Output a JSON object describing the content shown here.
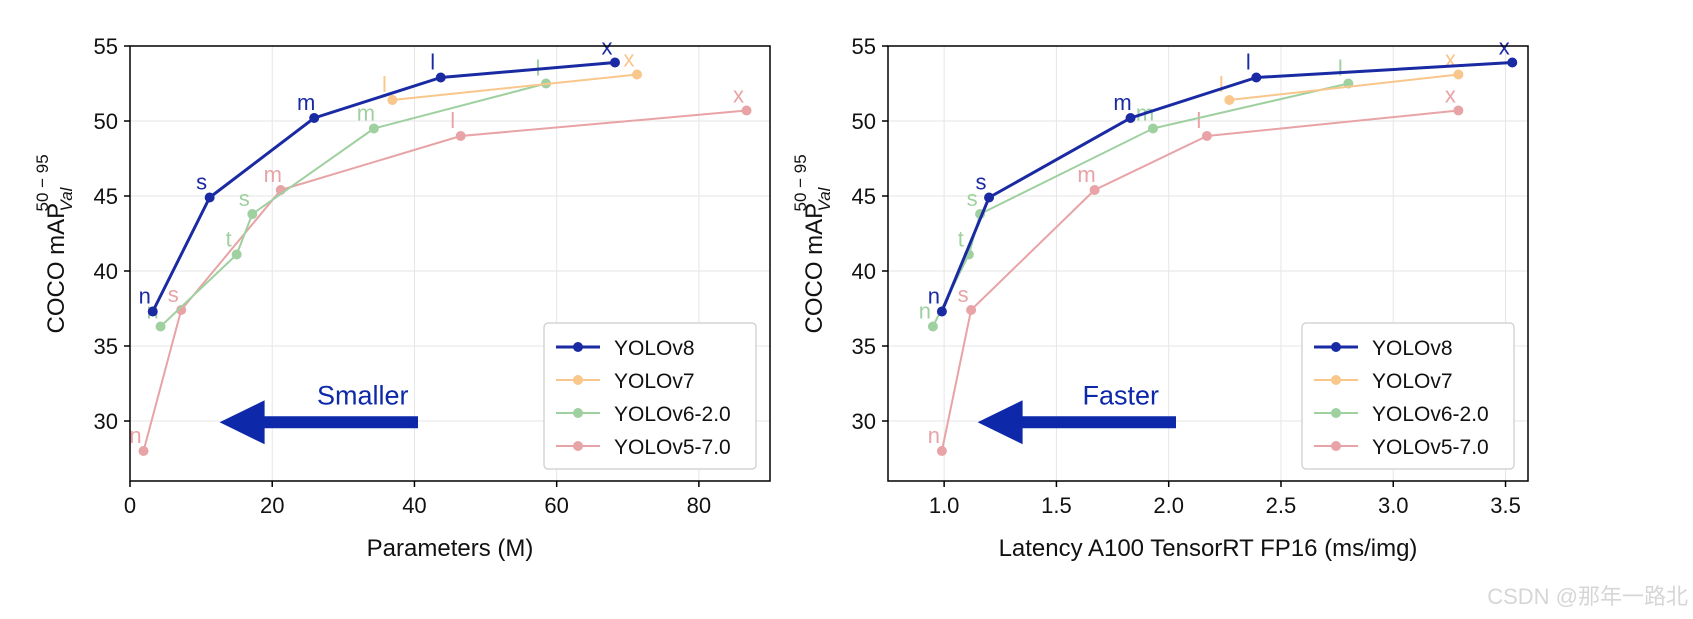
{
  "colors": {
    "yolov8": "#1a2aa3",
    "yolov7": "#f9c68c",
    "yolov6": "#9fd0a0",
    "yolov5": "#e8a3a6",
    "arrow": "#0d28a8",
    "grid": "#e6e6e6",
    "axis": "#000000"
  },
  "chart_data": [
    {
      "type": "line",
      "xlabel": "Parameters (M)",
      "ylabel": "COCO mAP",
      "ylabel_sup": "50 − 95",
      "ylabel_sub": "Val",
      "xlim": [
        0,
        90
      ],
      "ylim": [
        26,
        55
      ],
      "xticks": [
        0,
        20,
        40,
        60,
        80
      ],
      "xtick_labels": [
        "0",
        "20",
        "40",
        "60",
        "80"
      ],
      "yticks": [
        30,
        35,
        40,
        45,
        50,
        55
      ],
      "ytick_labels": [
        "30",
        "35",
        "40",
        "45",
        "50",
        "55"
      ],
      "grid": true,
      "legend_position": "bottom-right",
      "annotation": "Smaller",
      "series": [
        {
          "name": "YOLOv8",
          "color_key": "yolov8",
          "x": [
            3.2,
            11.2,
            25.9,
            43.7,
            68.2
          ],
          "y": [
            37.3,
            44.9,
            50.2,
            52.9,
            53.9
          ],
          "labels": [
            "n",
            "s",
            "m",
            "l",
            "x"
          ]
        },
        {
          "name": "YOLOv7",
          "color_key": "yolov7",
          "x": [
            36.9,
            71.3
          ],
          "y": [
            51.4,
            53.1
          ],
          "labels": [
            "l",
            "x"
          ]
        },
        {
          "name": "YOLOv6-2.0",
          "color_key": "yolov6",
          "x": [
            4.3,
            15.0,
            17.2,
            34.3,
            58.5
          ],
          "y": [
            36.3,
            41.1,
            43.8,
            49.5,
            52.5
          ],
          "labels": [
            "n",
            "t",
            "s",
            "m",
            "l"
          ]
        },
        {
          "name": "YOLOv5-7.0",
          "color_key": "yolov5",
          "x": [
            1.9,
            7.2,
            21.2,
            46.5,
            86.7
          ],
          "y": [
            28.0,
            37.4,
            45.4,
            49.0,
            50.7
          ],
          "labels": [
            "n",
            "s",
            "m",
            "l",
            "x"
          ]
        }
      ]
    },
    {
      "type": "line",
      "xlabel": "Latency A100 TensorRT FP16 (ms/img)",
      "ylabel": "COCO mAP",
      "ylabel_sup": "50 − 95",
      "ylabel_sub": "Val",
      "xlim": [
        0.75,
        3.6
      ],
      "ylim": [
        26,
        55
      ],
      "xticks": [
        1.0,
        1.5,
        2.0,
        2.5,
        3.0,
        3.5
      ],
      "xtick_labels": [
        "1.0",
        "1.5",
        "2.0",
        "2.5",
        "3.0",
        "3.5"
      ],
      "yticks": [
        30,
        35,
        40,
        45,
        50,
        55
      ],
      "ytick_labels": [
        "30",
        "35",
        "40",
        "45",
        "50",
        "55"
      ],
      "grid": true,
      "legend_position": "bottom-right",
      "annotation": "Faster",
      "series": [
        {
          "name": "YOLOv8",
          "color_key": "yolov8",
          "x": [
            0.99,
            1.2,
            1.83,
            2.39,
            3.53
          ],
          "y": [
            37.3,
            44.9,
            50.2,
            52.9,
            53.9
          ],
          "labels": [
            "n",
            "s",
            "m",
            "l",
            "x"
          ]
        },
        {
          "name": "YOLOv7",
          "color_key": "yolov7",
          "x": [
            2.27,
            3.29
          ],
          "y": [
            51.4,
            53.1
          ],
          "labels": [
            "l",
            "x"
          ]
        },
        {
          "name": "YOLOv6-2.0",
          "color_key": "yolov6",
          "x": [
            0.95,
            1.11,
            1.16,
            1.93,
            2.8
          ],
          "y": [
            36.3,
            41.1,
            43.8,
            49.5,
            52.5
          ],
          "labels": [
            "n",
            "t",
            "s",
            "m",
            "l"
          ]
        },
        {
          "name": "YOLOv5-7.0",
          "color_key": "yolov5",
          "x": [
            0.99,
            1.12,
            1.67,
            2.17,
            3.29
          ],
          "y": [
            28.0,
            37.4,
            45.4,
            49.0,
            50.7
          ],
          "labels": [
            "n",
            "s",
            "m",
            "l",
            "x"
          ]
        }
      ]
    }
  ],
  "watermark": "CSDN @那年一路北"
}
